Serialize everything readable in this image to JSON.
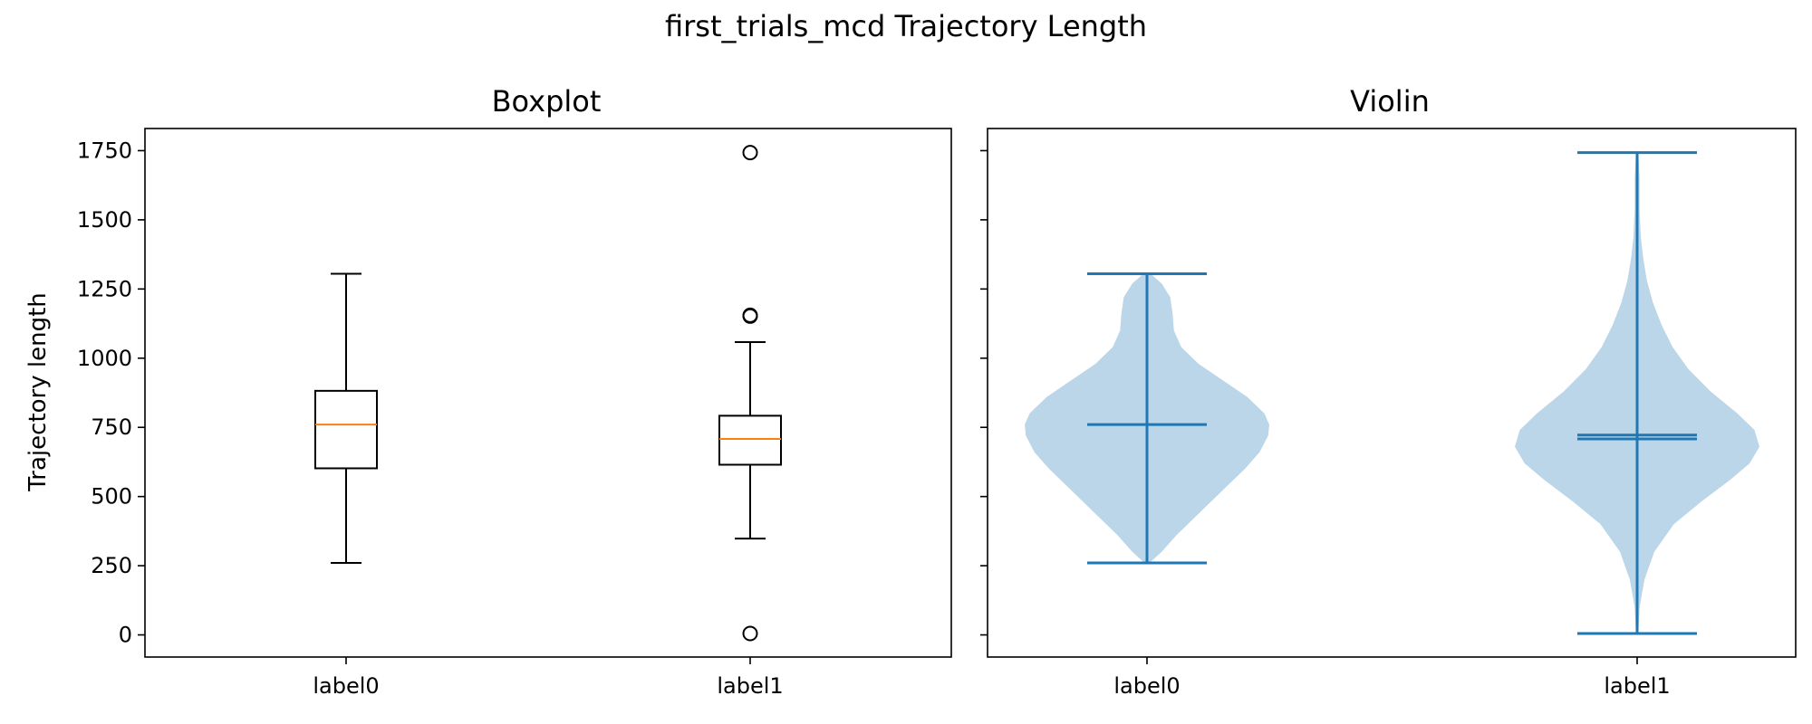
{
  "figure": {
    "title": "first_trials_mcd Trajectory Length"
  },
  "colors": {
    "box": "#000000",
    "median": "#ff7f0e",
    "violin_body": "#1f77b4",
    "violin_lines": "#1f77b4"
  },
  "chart_data": [
    {
      "type": "boxplot",
      "title": "Boxplot",
      "ylabel": "Trajectory length",
      "ylim": [
        -80,
        1830
      ],
      "yticks": [
        0,
        250,
        500,
        750,
        1000,
        1250,
        1500,
        1750
      ],
      "categories": [
        "label0",
        "label1"
      ],
      "boxes": [
        {
          "label": "label0",
          "whisker_low": 260,
          "q1": 602,
          "median": 760,
          "q3": 882,
          "whisker_high": 1305,
          "outliers": []
        },
        {
          "label": "label1",
          "whisker_low": 348,
          "q1": 615,
          "median": 708,
          "q3": 792,
          "whisker_high": 1058,
          "outliers": [
            5,
            1152,
            1155,
            1743
          ]
        }
      ]
    },
    {
      "type": "violin",
      "title": "Violin",
      "ylim": [
        -80,
        1830
      ],
      "categories": [
        "label0",
        "label1"
      ],
      "shared_y": true,
      "violins": [
        {
          "label": "label0",
          "min": 260,
          "max": 1305,
          "mean": 760,
          "density": [
            [
              260,
              0.02
            ],
            [
              300,
              0.12
            ],
            [
              360,
              0.24
            ],
            [
              420,
              0.38
            ],
            [
              480,
              0.52
            ],
            [
              540,
              0.66
            ],
            [
              600,
              0.8
            ],
            [
              660,
              0.92
            ],
            [
              720,
              0.99
            ],
            [
              760,
              1.0
            ],
            [
              800,
              0.96
            ],
            [
              860,
              0.82
            ],
            [
              920,
              0.62
            ],
            [
              980,
              0.42
            ],
            [
              1040,
              0.28
            ],
            [
              1100,
              0.22
            ],
            [
              1160,
              0.21
            ],
            [
              1220,
              0.19
            ],
            [
              1270,
              0.12
            ],
            [
              1305,
              0.03
            ]
          ]
        },
        {
          "label": "label1",
          "min": 5,
          "max": 1743,
          "mean": 722,
          "median": 708,
          "density": [
            [
              5,
              0.01
            ],
            [
              100,
              0.02
            ],
            [
              200,
              0.06
            ],
            [
              300,
              0.14
            ],
            [
              400,
              0.3
            ],
            [
              480,
              0.52
            ],
            [
              560,
              0.76
            ],
            [
              620,
              0.92
            ],
            [
              680,
              1.0
            ],
            [
              740,
              0.96
            ],
            [
              800,
              0.82
            ],
            [
              880,
              0.6
            ],
            [
              960,
              0.42
            ],
            [
              1040,
              0.29
            ],
            [
              1120,
              0.2
            ],
            [
              1200,
              0.13
            ],
            [
              1280,
              0.08
            ],
            [
              1360,
              0.05
            ],
            [
              1440,
              0.03
            ],
            [
              1540,
              0.02
            ],
            [
              1650,
              0.02
            ],
            [
              1743,
              0.01
            ]
          ]
        }
      ]
    }
  ]
}
